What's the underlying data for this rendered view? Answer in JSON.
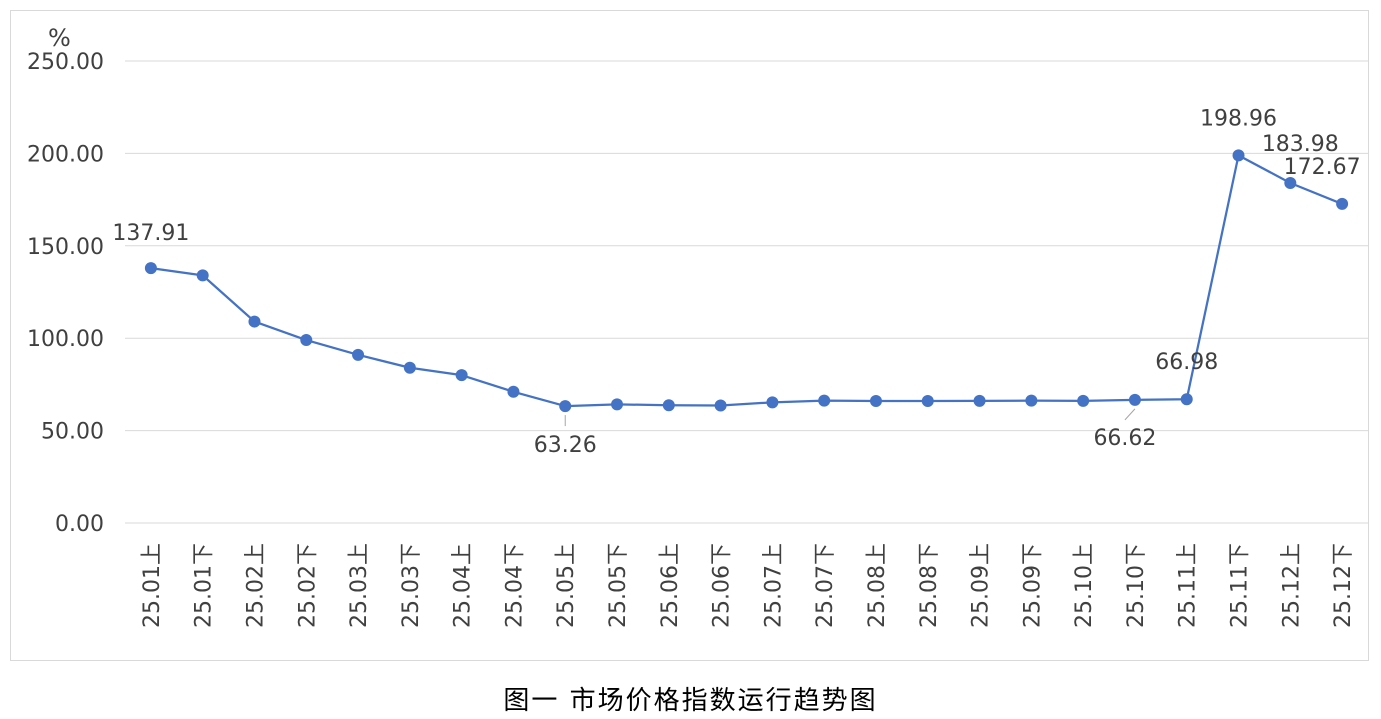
{
  "chart_data": {
    "type": "line",
    "title": "",
    "xlabel": "",
    "ylabel": "%",
    "ylim": [
      0,
      250
    ],
    "yticks": [
      "0.00",
      "50.00",
      "100.00",
      "150.00",
      "200.00",
      "250.00"
    ],
    "grid": true,
    "legend": "none",
    "categories": [
      "25.01上",
      "25.01下",
      "25.02上",
      "25.02下",
      "25.03上",
      "25.03下",
      "25.04上",
      "25.04下",
      "25.05上",
      "25.05下",
      "25.06上",
      "25.06下",
      "25.07上",
      "25.07下",
      "25.08上",
      "25.08下",
      "25.09上",
      "25.09下",
      "25.10上",
      "25.10下",
      "25.11上",
      "25.11下",
      "25.12上",
      "25.12下"
    ],
    "series": [
      {
        "color": "#4472C4",
        "values": [
          137.91,
          134.0,
          109.0,
          99.0,
          91.0,
          84.0,
          80.0,
          71.0,
          63.26,
          64.2,
          63.7,
          63.6,
          65.3,
          66.2,
          66.0,
          66.0,
          66.1,
          66.2,
          66.1,
          66.62,
          66.98,
          198.96,
          183.98,
          172.67
        ]
      }
    ],
    "data_labels": [
      {
        "index": 0,
        "text": "137.91",
        "placement": "above"
      },
      {
        "index": 8,
        "text": "63.26",
        "placement": "below"
      },
      {
        "index": 19,
        "text": "66.62",
        "placement": "below"
      },
      {
        "index": 20,
        "text": "66.98",
        "placement": "above"
      },
      {
        "index": 21,
        "text": "198.96",
        "placement": "above"
      },
      {
        "index": 22,
        "text": "183.98",
        "placement": "above"
      },
      {
        "index": 23,
        "text": "172.67",
        "placement": "above"
      }
    ]
  },
  "caption": "图一  市场价格指数运行趋势图"
}
